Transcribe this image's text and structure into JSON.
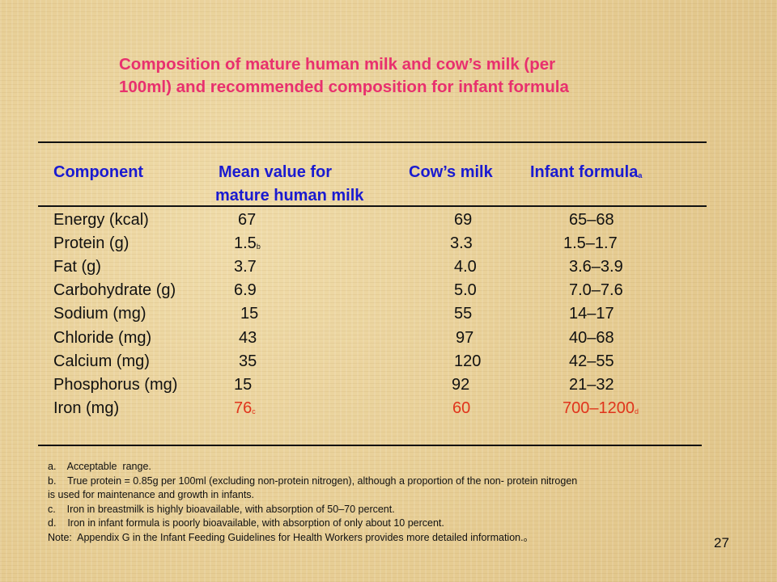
{
  "title_line1": "Composition of mature human milk and cow’s milk (per",
  "title_line2": "100ml) and recommended composition for infant formula",
  "headers": {
    "component": "Component",
    "mean_line1": "Mean value for",
    "mean_line2": "mature human milk",
    "cow": "Cow’s milk",
    "formula": "Infant formula",
    "formula_sup": "a"
  },
  "rows": [
    {
      "component": "Energy (kcal)",
      "human": "67",
      "human_sub": "",
      "cow": "69",
      "formula": "65–68",
      "formula_sub": ""
    },
    {
      "component": "Protein (g)",
      "human": "1.5",
      "human_sub": "b",
      "cow": "3.3",
      "formula": "1.5–1.7",
      "formula_sub": ""
    },
    {
      "component": "Fat (g)",
      "human": "3.7",
      "human_sub": "",
      "cow": "4.0",
      "formula": "3.6–3.9",
      "formula_sub": ""
    },
    {
      "component": "Carbohydrate (g)",
      "human": "6.9",
      "human_sub": "",
      "cow": "5.0",
      "formula": "7.0–7.6",
      "formula_sub": ""
    },
    {
      "component": "Sodium (mg)",
      "human": "15",
      "human_sub": "",
      "cow": "55",
      "formula": "14–17",
      "formula_sub": ""
    },
    {
      "component": "Chloride (mg)",
      "human": "43",
      "human_sub": "",
      "cow": "97",
      "formula": "40–68",
      "formula_sub": ""
    },
    {
      "component": "Calcium (mg)",
      "human": "35",
      "human_sub": "",
      "cow": "120",
      "formula": "42–55",
      "formula_sub": ""
    },
    {
      "component": "Phosphorus (mg)",
      "human": "15",
      "human_sub": "",
      "cow": "92",
      "formula": "21–32",
      "formula_sub": ""
    },
    {
      "component": "Iron (mg)",
      "human": "76",
      "human_sub": "c",
      "cow": "60",
      "formula": "700–1200",
      "formula_sub": "d"
    }
  ],
  "notes": [
    "a.    Acceptable  range.",
    "b.    True protein = 0.85g per 100ml (excluding non-protein nitrogen), although a proportion of the non- protein nitrogen",
    "is used for maintenance and growth in infants.",
    "c.    Iron in breastmilk is highly bioavailable, with absorption of 50–70 percent.",
    "d.    Iron in infant formula is poorly bioavailable, with absorption of only about 10 percent.",
    "Note:  Appendix G in the Infant Feeding Guidelines for Health Workers provides more detailed information.。"
  ],
  "page_number": "27",
  "colors": {
    "title": "#e8306e",
    "header": "#1a1ad0",
    "highlight": "#e0341c",
    "text": "#111111"
  }
}
